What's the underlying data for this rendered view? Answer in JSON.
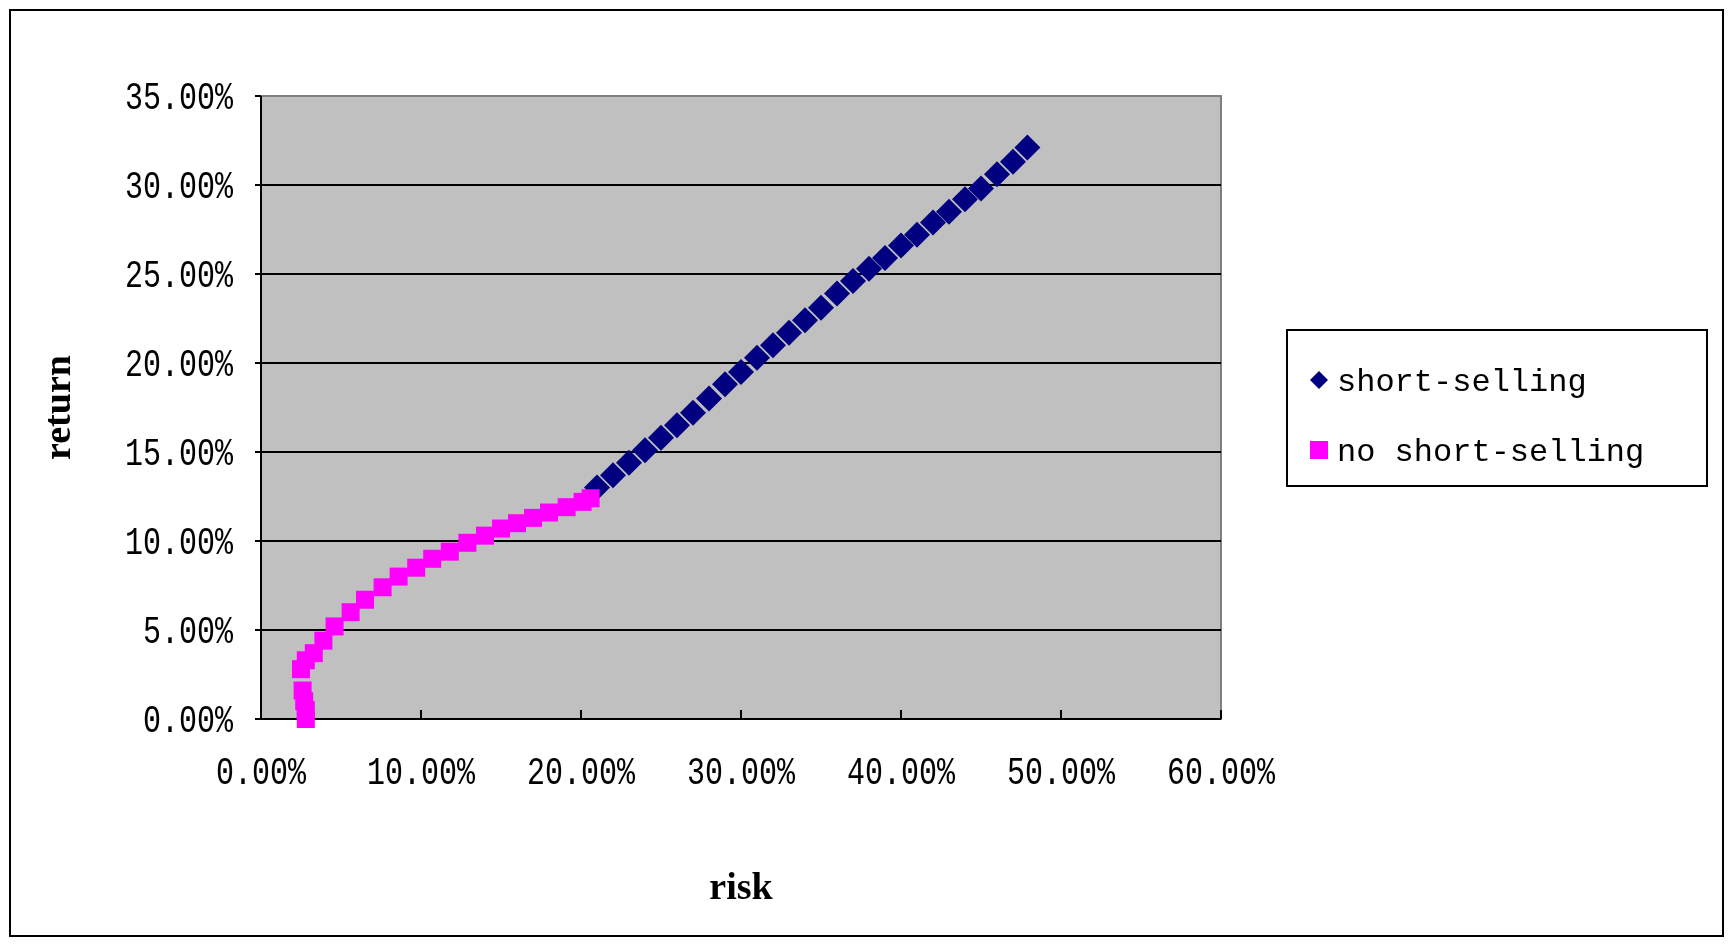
{
  "chart_data": {
    "type": "scatter",
    "xlabel": "risk",
    "ylabel": "return",
    "xlim": [
      0,
      60
    ],
    "ylim": [
      0,
      35
    ],
    "xticks": [
      {
        "value": 0,
        "label": "0.00%"
      },
      {
        "value": 10,
        "label": "10.00%"
      },
      {
        "value": 20,
        "label": "20.00%"
      },
      {
        "value": 30,
        "label": "30.00%"
      },
      {
        "value": 40,
        "label": "40.00%"
      },
      {
        "value": 50,
        "label": "50.00%"
      },
      {
        "value": 60,
        "label": "60.00%"
      }
    ],
    "yticks": [
      {
        "value": 0,
        "label": "0.00%"
      },
      {
        "value": 5,
        "label": "5.00%"
      },
      {
        "value": 10,
        "label": "10.00%"
      },
      {
        "value": 15,
        "label": "15.00%"
      },
      {
        "value": 20,
        "label": "20.00%"
      },
      {
        "value": 25,
        "label": "25.00%"
      },
      {
        "value": 30,
        "label": "30.00%"
      },
      {
        "value": 35,
        "label": "35.00%"
      }
    ],
    "grid": "y",
    "legend": "right",
    "series": [
      {
        "name": "short-selling",
        "color": "#000080",
        "marker": "diamond",
        "x": [
          21,
          22,
          23,
          24,
          25,
          26,
          27,
          28,
          29,
          30,
          31,
          32,
          33,
          34,
          35,
          36,
          37,
          38,
          39,
          40,
          41,
          42,
          43,
          44,
          45,
          46,
          47,
          47.9
        ],
        "values": [
          13.0,
          13.7,
          14.4,
          15.1,
          15.8,
          16.5,
          17.2,
          18.0,
          18.8,
          19.5,
          20.3,
          21.0,
          21.7,
          22.4,
          23.1,
          23.9,
          24.6,
          25.3,
          25.9,
          26.6,
          27.2,
          27.9,
          28.5,
          29.2,
          29.8,
          30.6,
          31.3,
          32.1
        ]
      },
      {
        "name": "no short-selling",
        "color": "#ff00ff",
        "marker": "square",
        "x": [
          2.8,
          2.8,
          2.7,
          2.6,
          2.5,
          2.8,
          3.3,
          3.9,
          4.6,
          5.6,
          6.5,
          7.6,
          8.6,
          9.7,
          10.7,
          11.8,
          12.9,
          14,
          15,
          16,
          17,
          18,
          19.1,
          20.1,
          20.6
        ],
        "values": [
          0,
          0.5,
          1,
          1.6,
          2.8,
          3.3,
          3.7,
          4.4,
          5.2,
          6.0,
          6.7,
          7.4,
          8.0,
          8.5,
          9.0,
          9.4,
          9.9,
          10.3,
          10.7,
          11.0,
          11.3,
          11.6,
          11.9,
          12.2,
          12.4
        ]
      }
    ]
  }
}
